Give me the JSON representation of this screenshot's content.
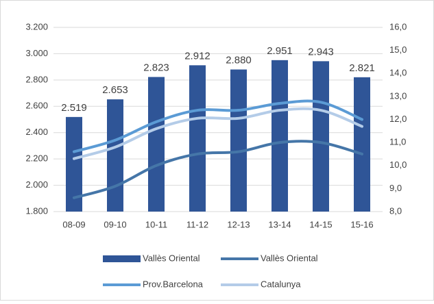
{
  "chart_data": {
    "type": "bar-line",
    "categories": [
      "08-09",
      "09-10",
      "10-11",
      "11-12",
      "12-13",
      "13-14",
      "14-15",
      "15-16"
    ],
    "series": [
      {
        "name": "Vallès Oriental",
        "type": "bar",
        "color": "#2f5597",
        "values": [
          2519,
          2653,
          2823,
          2912,
          2880,
          2951,
          2943,
          2821
        ],
        "value_labels": [
          "2.519",
          "2.653",
          "2.823",
          "2.912",
          "2.880",
          "2.951",
          "2.943",
          "2.821"
        ]
      },
      {
        "name": "Vallès Oriental",
        "type": "line",
        "axis": "y2",
        "color": "#4576a8",
        "values": [
          8.6,
          9.1,
          10.0,
          10.5,
          10.6,
          11.0,
          11.0,
          10.5
        ]
      },
      {
        "name": "Prov.Barcelona",
        "type": "line",
        "axis": "y2",
        "color": "#5b9bd5",
        "values": [
          10.6,
          11.1,
          11.9,
          12.4,
          12.4,
          12.7,
          12.75,
          12.0
        ]
      },
      {
        "name": "Catalunya",
        "type": "line",
        "axis": "y2",
        "color": "#b4cce8",
        "values": [
          10.3,
          10.8,
          11.6,
          12.05,
          12.05,
          12.4,
          12.4,
          11.7
        ]
      }
    ],
    "ylim": [
      1800,
      3200
    ],
    "yticks": [
      {
        "value": 1800,
        "label": "1.800"
      },
      {
        "value": 2000,
        "label": "2.000"
      },
      {
        "value": 2200,
        "label": "2.200"
      },
      {
        "value": 2400,
        "label": "2.400"
      },
      {
        "value": 2600,
        "label": "2.600"
      },
      {
        "value": 2800,
        "label": "2.800"
      },
      {
        "value": 3000,
        "label": "3.000"
      },
      {
        "value": 3200,
        "label": "3.200"
      }
    ],
    "y2lim": [
      8,
      16
    ],
    "y2ticks": [
      {
        "value": 8,
        "label": "8,0"
      },
      {
        "value": 9,
        "label": "9,0"
      },
      {
        "value": 10,
        "label": "10,0"
      },
      {
        "value": 11,
        "label": "11,0"
      },
      {
        "value": 12,
        "label": "12,0"
      },
      {
        "value": 13,
        "label": "13,0"
      },
      {
        "value": 14,
        "label": "14,0"
      },
      {
        "value": 15,
        "label": "15,0"
      },
      {
        "value": 16,
        "label": "16,0"
      }
    ],
    "grid": true,
    "legend": "bottom"
  }
}
